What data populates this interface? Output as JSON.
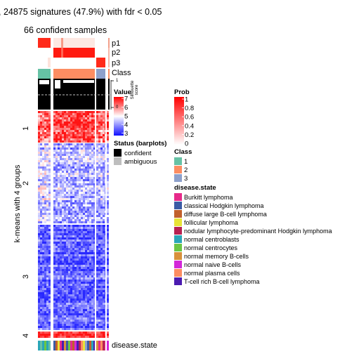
{
  "title": ", 24875 signatures (47.9%) with fdr < 0.05",
  "subtitle": "66 confident samples",
  "row_title": "k-means with 4 groups",
  "annotation_labels": {
    "p1": "p1",
    "p2": "p2",
    "p3": "p3",
    "class": "Class",
    "disease_state": "disease.state"
  },
  "silhouette": {
    "label": "Silhouette\nscore",
    "tick_1": "1",
    "tick_0": "0"
  },
  "chart_data": {
    "type": "heatmap",
    "n_signatures": 24875,
    "n_samples": 66,
    "row_groups": [
      "1",
      "2",
      "3",
      "4"
    ],
    "column_classes": [
      "1",
      "2",
      "3"
    ],
    "value_range": [
      3,
      7
    ]
  },
  "legends": {
    "value": {
      "title": "Value",
      "ticks": [
        "7",
        "6",
        "5",
        "4",
        "3"
      ],
      "colors": [
        "#ff0000",
        "#ffffff",
        "#0000ff"
      ]
    },
    "prob": {
      "title": "Prob",
      "ticks": [
        "1",
        "0.8",
        "0.6",
        "0.4",
        "0.2",
        "0"
      ],
      "colors": [
        "#ff0000",
        "#ffffff"
      ]
    },
    "status": {
      "title": "Status (barplots)",
      "items": [
        {
          "label": "confident",
          "color": "#000000"
        },
        {
          "label": "ambiguous",
          "color": "#bebebe"
        }
      ]
    },
    "class": {
      "title": "Class",
      "items": [
        {
          "label": "1",
          "color": "#66c2a5"
        },
        {
          "label": "2",
          "color": "#fc8d62"
        },
        {
          "label": "3",
          "color": "#8da0cb"
        }
      ]
    },
    "disease_state": {
      "title": "disease.state",
      "items": [
        {
          "label": "Burkitt lymphoma",
          "color": "#e7298a"
        },
        {
          "label": "classical Hodgkin lymphoma",
          "color": "#3b5ba5"
        },
        {
          "label": "diffuse large B-cell lymphoma",
          "color": "#c1602c"
        },
        {
          "label": "follicular lymphoma",
          "color": "#e8e337"
        },
        {
          "label": "nodular lymphocyte-predominant Hodgkin lymphoma",
          "color": "#b72252"
        },
        {
          "label": "normal centroblasts",
          "color": "#2aa6b8"
        },
        {
          "label": "normal centrocytes",
          "color": "#6cc644"
        },
        {
          "label": "normal memory B-cells",
          "color": "#d8903a"
        },
        {
          "label": "normal naive B-cells",
          "color": "#d327d9"
        },
        {
          "label": "normal plasma cells",
          "color": "#fc8d62"
        },
        {
          "label": "T-cell rich B-cell lymphoma",
          "color": "#4b1bb0"
        }
      ]
    }
  }
}
